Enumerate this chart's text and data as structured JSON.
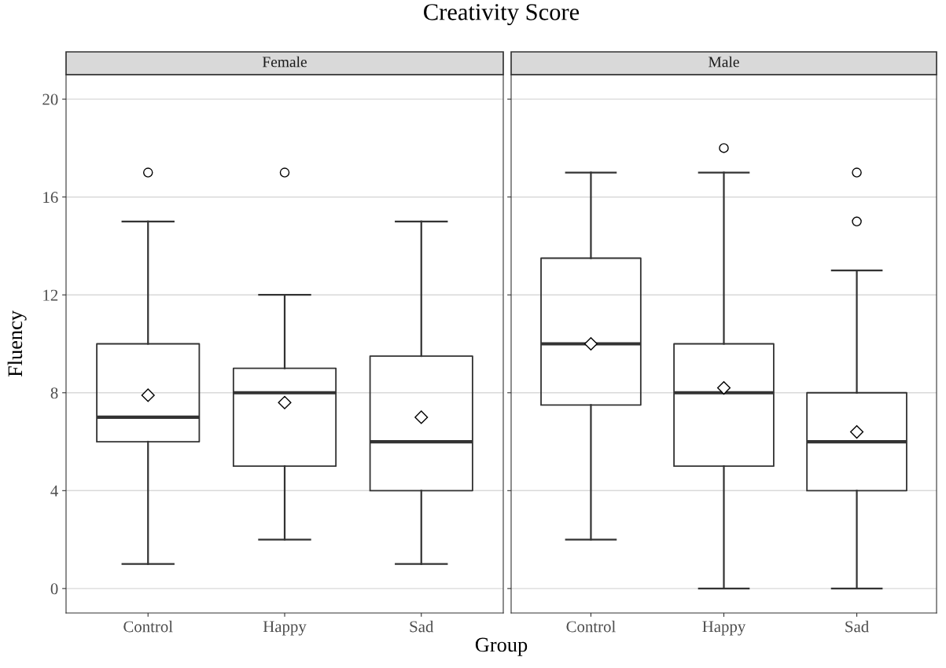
{
  "chart_data": [
    {
      "type": "box",
      "title": "Creativity Score",
      "subtitle": "Female",
      "xlabel": "Group",
      "ylabel": "Fluency",
      "categories": [
        "Control",
        "Happy",
        "Sad"
      ],
      "boxes": [
        {
          "low": 1,
          "q1": 6,
          "median": 7,
          "q3": 10,
          "high": 15,
          "mean": 7.9,
          "outliers": [
            17
          ]
        },
        {
          "low": 2,
          "q1": 5,
          "median": 8,
          "q3": 9,
          "high": 12,
          "mean": 7.6,
          "outliers": [
            17
          ]
        },
        {
          "low": 1,
          "q1": 4,
          "median": 6,
          "q3": 9.5,
          "high": 15,
          "mean": 7.0
        }
      ],
      "ylim": [
        -1,
        21
      ],
      "yticks": [
        0,
        4,
        8,
        12,
        16,
        20
      ],
      "grid": "y",
      "marker": "diamond"
    },
    {
      "type": "box",
      "subtitle": "Male",
      "categories": [
        "Control",
        "Happy",
        "Sad"
      ],
      "boxes": [
        {
          "low": 2,
          "q1": 7.5,
          "median": 10,
          "q3": 13.5,
          "high": 17,
          "mean": 10
        },
        {
          "low": 0,
          "q1": 5,
          "median": 8,
          "q3": 10,
          "high": 17,
          "mean": 8.2,
          "outliers": [
            18
          ]
        },
        {
          "low": 0,
          "q1": 4,
          "median": 6,
          "q3": 8,
          "high": 13,
          "mean": 6.4,
          "outliers": [
            15,
            17
          ]
        }
      ],
      "ylim": [
        -1,
        21
      ],
      "yticks": [
        0,
        4,
        8,
        12,
        16,
        20
      ],
      "grid": "y",
      "marker": "diamond",
      "tick_labels": "x"
    }
  ]
}
